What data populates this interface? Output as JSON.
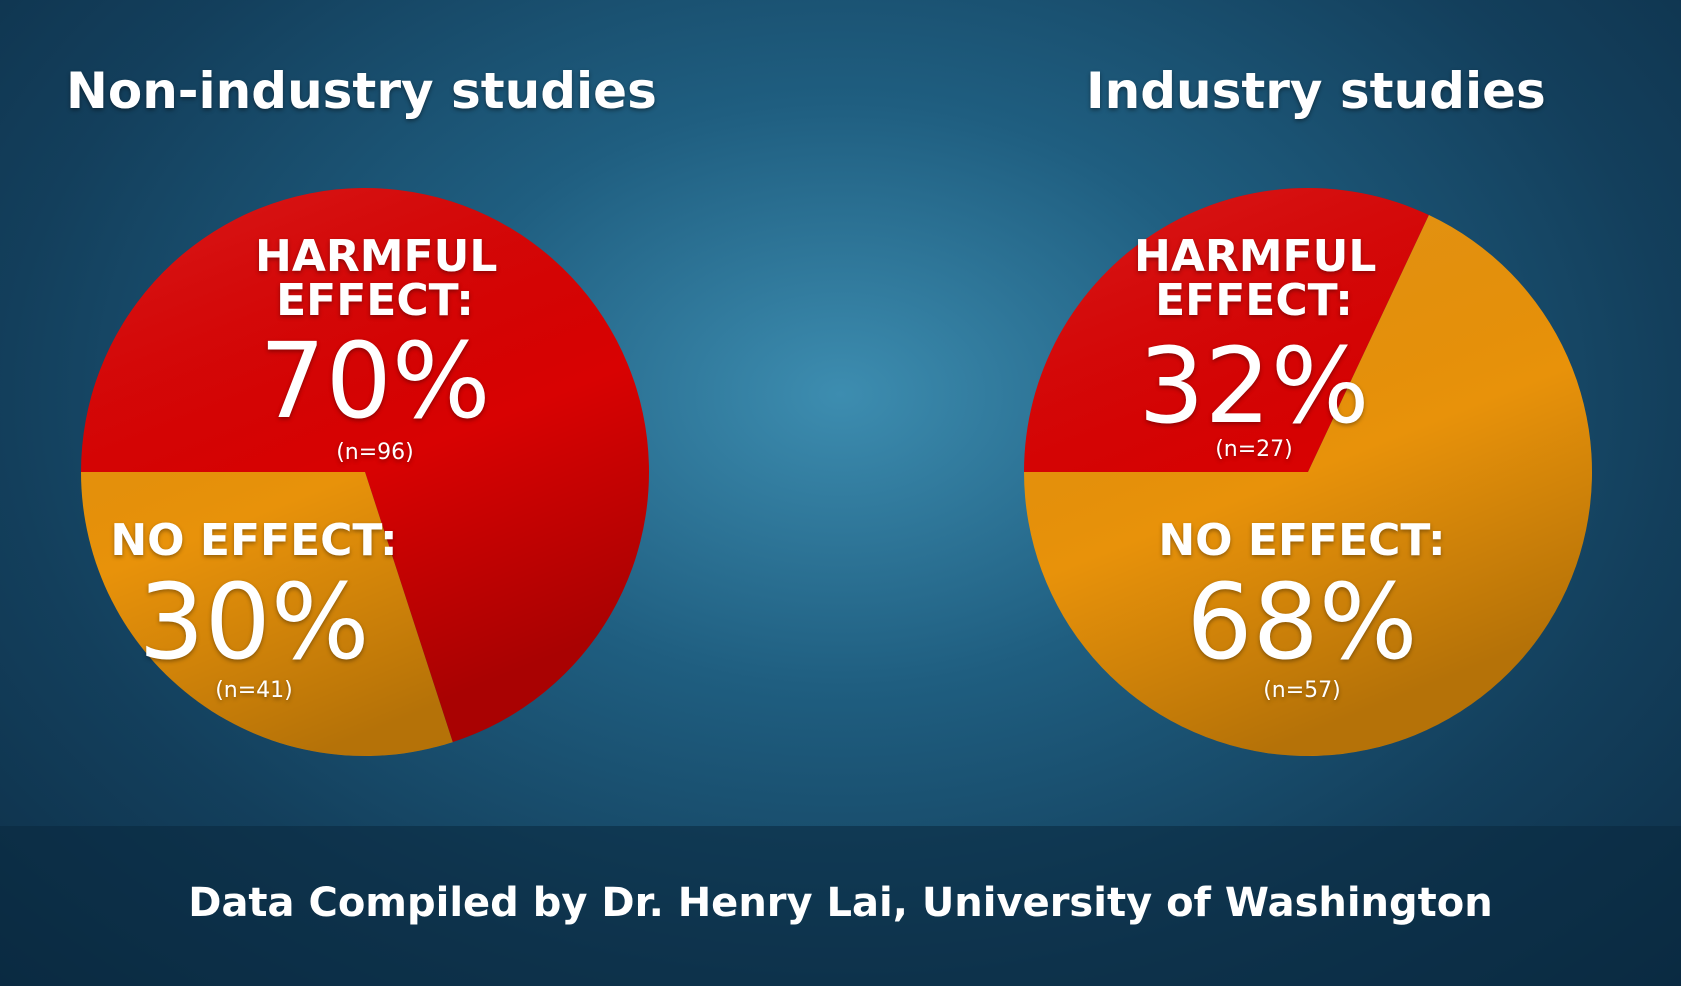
{
  "chart_data": [
    {
      "type": "pie",
      "title": "Non-industry studies",
      "categories": [
        "HARMFUL EFFECT:",
        "NO EFFECT:"
      ],
      "values": [
        70,
        30
      ],
      "value_labels": [
        "70%",
        "30%"
      ],
      "counts": [
        "(n=96)",
        "(n=41)"
      ],
      "colors": [
        "#d80202",
        "#e8920a"
      ]
    },
    {
      "type": "pie",
      "title": "Industry studies",
      "categories": [
        "HARMFUL EFFECT:",
        "NO EFFECT:"
      ],
      "values": [
        32,
        68
      ],
      "value_labels": [
        "32%",
        "68%"
      ],
      "counts": [
        "(n=27)",
        "(n=57)"
      ],
      "colors": [
        "#d80202",
        "#e8920a"
      ]
    }
  ],
  "source": "Data Compiled by Dr. Henry Lai, University of Washington"
}
